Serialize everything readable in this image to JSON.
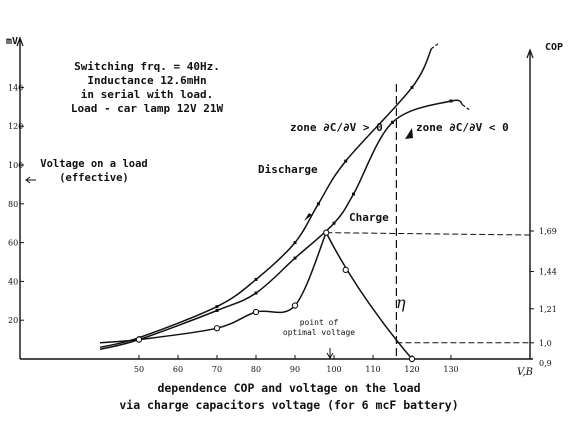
{
  "chart_data": {
    "type": "line",
    "xlabel": "V,B",
    "ylabel_left": "mV",
    "ylabel_right": "COP",
    "xlim": [
      40,
      130
    ],
    "ylim_left": [
      0,
      155
    ],
    "ylim_right": [
      0.9,
      1.9
    ],
    "x_ticks": [
      "50",
      "60",
      "70",
      "80",
      "90",
      "100",
      "110",
      "120",
      "130"
    ],
    "y_ticks_left": [
      "20",
      "40",
      "60",
      "80",
      "100",
      "120",
      "140"
    ],
    "y_ticks_right": [
      "1,0",
      "1,21",
      "1,44",
      "1,69"
    ],
    "y_tick_right_bottom": "0,9",
    "x_tick_values": [
      50,
      60,
      70,
      80,
      90,
      100,
      110,
      120,
      130
    ],
    "y_tick_values_left": [
      20,
      40,
      60,
      80,
      100,
      120,
      140
    ],
    "y_tick_values_right": [
      1.0,
      1.21,
      1.44,
      1.69
    ],
    "series": [
      {
        "name": "Discharge",
        "axis": "left",
        "x": [
          50,
          70,
          80,
          90,
          96,
          103,
          120
        ],
        "y": [
          11,
          27,
          41,
          60,
          80,
          102,
          140
        ]
      },
      {
        "name": "Charge",
        "axis": "left",
        "x": [
          50,
          70,
          80,
          90,
          100,
          105,
          115,
          130
        ],
        "y": [
          10,
          25,
          34,
          52,
          70,
          85,
          122,
          133
        ]
      },
      {
        "name": "η",
        "axis": "right",
        "x": [
          50,
          70,
          80,
          90,
          98,
          103,
          120
        ],
        "y": [
          1.02,
          1.09,
          1.19,
          1.23,
          1.68,
          1.45,
          0.9
        ]
      }
    ],
    "annotations": {
      "info": [
        "Switching frq. = 40Hz.",
        "Inductance 12.6mHn",
        "in serial with load.",
        "Load - car lamp 12V 21W"
      ],
      "voltage_label": [
        "Voltage on a load",
        "(effective)"
      ],
      "discharge_label": "Discharge",
      "charge_label": "Charge",
      "eta_label": "η",
      "zone_left": "zone ∂C/∂V > 0",
      "zone_right": "zone ∂C/∂V < 0",
      "optimal": [
        "point of",
        "optimal voltage"
      ],
      "caption": [
        "dependence COP and voltage on the load",
        "via charge capacitors voltage (for 6 mcF battery)"
      ]
    }
  }
}
